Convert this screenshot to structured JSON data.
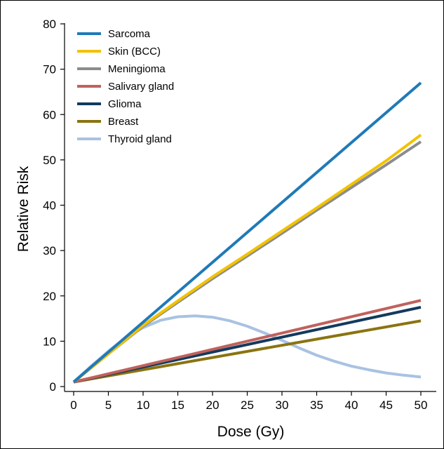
{
  "chart_data": {
    "type": "line",
    "xlabel": "Dose (Gy)",
    "ylabel": "Relative Risk",
    "xlim": [
      -1,
      52
    ],
    "ylim": [
      0,
      80
    ],
    "x_ticks": [
      0,
      5,
      10,
      15,
      20,
      25,
      30,
      35,
      40,
      45,
      50
    ],
    "y_ticks": [
      0,
      10,
      20,
      30,
      40,
      50,
      60,
      70,
      80
    ],
    "grid": false,
    "legend_position": "top-left",
    "series": [
      {
        "name": "Sarcoma",
        "color": "#1f7ab8",
        "x": [
          0,
          50
        ],
        "values": [
          1,
          67
        ]
      },
      {
        "name": "Skin (BCC)",
        "color": "#f2c200",
        "x": [
          0,
          5,
          10,
          15,
          20,
          25,
          30,
          35,
          40,
          45,
          50
        ],
        "values": [
          1,
          7.2,
          13.5,
          18.9,
          24.2,
          29.2,
          34.3,
          39.4,
          44.6,
          49.8,
          55.5
        ]
      },
      {
        "name": "Meningioma",
        "color": "#8c8c8c",
        "x": [
          0,
          5,
          10,
          15,
          20,
          25,
          30,
          35,
          40,
          45,
          50
        ],
        "values": [
          1,
          7.2,
          13.3,
          18.6,
          23.8,
          28.8,
          33.8,
          38.9,
          43.9,
          48.9,
          54
        ]
      },
      {
        "name": "Salivary gland",
        "color": "#c0615c",
        "x": [
          0,
          50
        ],
        "values": [
          1,
          19
        ]
      },
      {
        "name": "Glioma",
        "color": "#133a5e",
        "x": [
          0,
          50
        ],
        "values": [
          1,
          17.5
        ]
      },
      {
        "name": "Breast",
        "color": "#8a7410",
        "x": [
          0,
          50
        ],
        "values": [
          1,
          14.5
        ]
      },
      {
        "name": "Thyroid gland",
        "color": "#a9c2e2",
        "x": [
          0,
          2.5,
          5,
          7.5,
          10,
          12.5,
          15,
          17.5,
          20,
          22.5,
          25,
          27.5,
          30,
          32.5,
          35,
          37.5,
          40,
          42.5,
          45,
          47.5,
          50
        ],
        "values": [
          1,
          4.5,
          7.8,
          10.8,
          13,
          14.6,
          15.4,
          15.6,
          15.3,
          14.5,
          13.3,
          11.8,
          10.2,
          8.5,
          6.9,
          5.6,
          4.5,
          3.7,
          3,
          2.5,
          2.1
        ]
      }
    ]
  }
}
